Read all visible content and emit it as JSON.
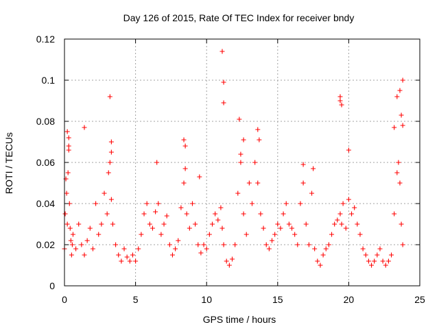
{
  "chart_data": {
    "type": "scatter",
    "title": "Day 126 of 2015, Rate Of TEC Index for receiver bndy",
    "xlabel": "GPS time / hours",
    "ylabel": "ROTI / TECUs",
    "xlim": [
      0,
      25
    ],
    "ylim": [
      0,
      0.12
    ],
    "x_ticks": [
      0,
      5,
      10,
      15,
      20,
      25
    ],
    "x_tick_labels": [
      "0",
      "5",
      "10",
      "15",
      "20",
      "25"
    ],
    "y_ticks": [
      0,
      0.02,
      0.04,
      0.06,
      0.08,
      0.1,
      0.12
    ],
    "y_tick_labels": [
      "0",
      "0.02",
      "0.04",
      "0.06",
      "0.08",
      "0.1",
      "0.12"
    ],
    "grid": true,
    "series": [
      {
        "name": "ROTI",
        "color": "#ff0000",
        "marker": "plus",
        "x": [
          0.0,
          0.05,
          0.1,
          0.15,
          0.2,
          0.25,
          0.3,
          0.35,
          0.4,
          0.45,
          0.5,
          0.55,
          0.6,
          0.8,
          1.0,
          1.2,
          1.4,
          1.6,
          1.8,
          2.0,
          2.2,
          2.4,
          2.6,
          2.8,
          3.0,
          3.1,
          3.2,
          3.3,
          3.4,
          3.6,
          3.8,
          4.0,
          4.2,
          4.4,
          4.6,
          4.8,
          5.0,
          5.2,
          5.4,
          5.6,
          5.8,
          6.0,
          6.2,
          6.4,
          6.6,
          6.8,
          7.0,
          7.2,
          7.4,
          7.6,
          7.8,
          8.0,
          8.2,
          8.4,
          8.5,
          8.6,
          8.8,
          9.0,
          9.2,
          9.4,
          9.6,
          9.8,
          10.0,
          10.2,
          10.4,
          10.6,
          10.8,
          11.0,
          11.1,
          11.2,
          11.4,
          11.6,
          11.8,
          12.0,
          12.2,
          12.4,
          12.6,
          12.8,
          13.0,
          13.2,
          13.4,
          13.6,
          13.8,
          14.0,
          14.2,
          14.4,
          14.6,
          14.8,
          15.0,
          15.2,
          15.4,
          15.6,
          15.8,
          16.0,
          16.2,
          16.4,
          16.6,
          16.8,
          17.0,
          17.2,
          17.4,
          17.6,
          17.8,
          18.0,
          18.2,
          18.4,
          18.6,
          18.8,
          19.0,
          19.2,
          19.4,
          19.5,
          19.6,
          19.8,
          20.0,
          20.2,
          20.4,
          20.6,
          20.8,
          21.0,
          21.2,
          21.4,
          21.6,
          21.8,
          22.0,
          22.2,
          22.4,
          22.6,
          22.8,
          23.0,
          23.2,
          23.4,
          23.5,
          23.6,
          23.7,
          23.8,
          0.2,
          0.3,
          0.3,
          1.4,
          3.2,
          3.3,
          3.3,
          6.5,
          8.4,
          8.5,
          9.5,
          11.1,
          11.2,
          11.2,
          12.3,
          12.4,
          12.6,
          13.6,
          13.7,
          16.8,
          17.5,
          19.4,
          19.4,
          19.5,
          20.0,
          23.2,
          23.4,
          23.6,
          23.7,
          23.8,
          23.8
        ],
        "y": [
          0.018,
          0.035,
          0.052,
          0.045,
          0.03,
          0.055,
          0.066,
          0.04,
          0.028,
          0.022,
          0.015,
          0.02,
          0.025,
          0.018,
          0.03,
          0.02,
          0.015,
          0.022,
          0.028,
          0.018,
          0.04,
          0.025,
          0.03,
          0.045,
          0.035,
          0.055,
          0.06,
          0.042,
          0.03,
          0.02,
          0.015,
          0.012,
          0.018,
          0.014,
          0.012,
          0.015,
          0.012,
          0.018,
          0.025,
          0.035,
          0.04,
          0.03,
          0.028,
          0.036,
          0.04,
          0.025,
          0.03,
          0.034,
          0.02,
          0.015,
          0.018,
          0.022,
          0.038,
          0.05,
          0.057,
          0.035,
          0.028,
          0.04,
          0.03,
          0.02,
          0.016,
          0.02,
          0.018,
          0.025,
          0.03,
          0.035,
          0.032,
          0.038,
          0.028,
          0.02,
          0.012,
          0.01,
          0.013,
          0.02,
          0.045,
          0.06,
          0.035,
          0.025,
          0.05,
          0.04,
          0.06,
          0.05,
          0.035,
          0.028,
          0.02,
          0.018,
          0.022,
          0.025,
          0.03,
          0.028,
          0.035,
          0.04,
          0.03,
          0.028,
          0.025,
          0.02,
          0.04,
          0.05,
          0.03,
          0.02,
          0.045,
          0.018,
          0.012,
          0.01,
          0.015,
          0.018,
          0.02,
          0.025,
          0.03,
          0.032,
          0.035,
          0.03,
          0.04,
          0.028,
          0.042,
          0.035,
          0.038,
          0.03,
          0.025,
          0.018,
          0.015,
          0.012,
          0.01,
          0.012,
          0.015,
          0.018,
          0.012,
          0.01,
          0.012,
          0.015,
          0.035,
          0.055,
          0.06,
          0.05,
          0.03,
          0.02,
          0.075,
          0.072,
          0.068,
          0.077,
          0.092,
          0.07,
          0.065,
          0.06,
          0.071,
          0.068,
          0.053,
          0.114,
          0.099,
          0.089,
          0.081,
          0.064,
          0.071,
          0.076,
          0.071,
          0.059,
          0.057,
          0.092,
          0.09,
          0.088,
          0.066,
          0.077,
          0.092,
          0.095,
          0.083,
          0.1,
          0.078
        ]
      }
    ]
  }
}
